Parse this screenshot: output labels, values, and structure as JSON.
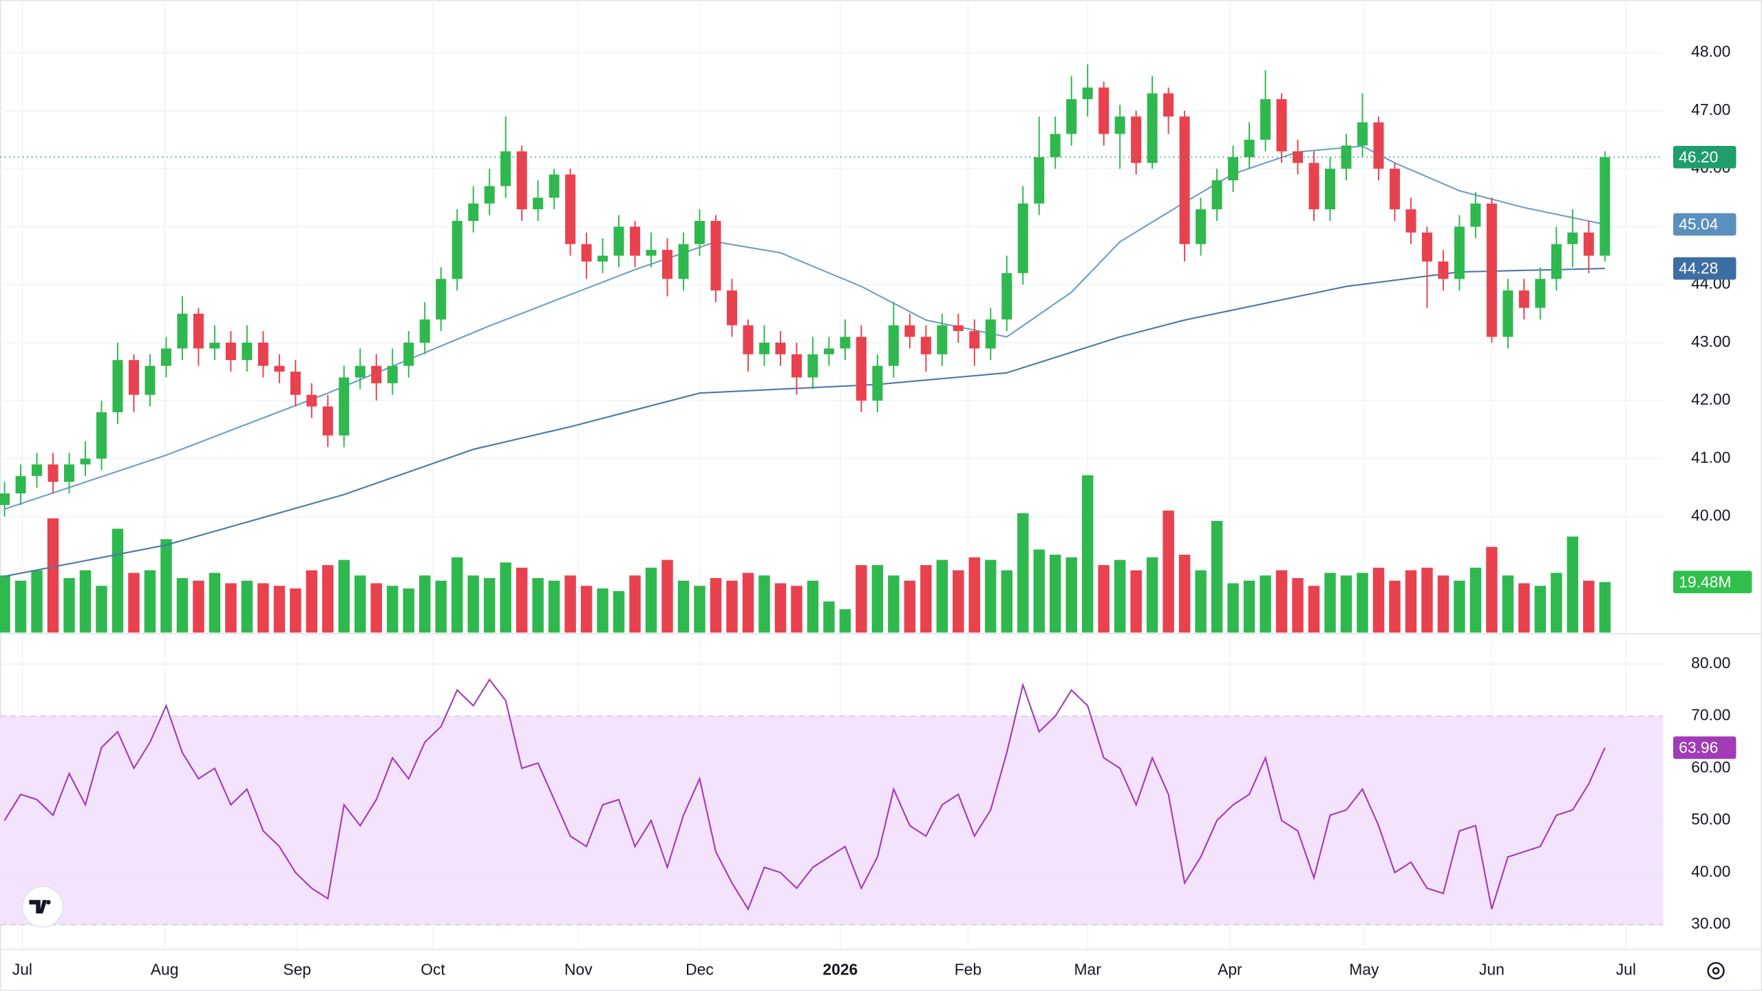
{
  "chart_data": [
    {
      "type": "candlestick",
      "xlim": [
        -0.28,
        102.6
      ],
      "ylim": [
        38.0,
        48.91
      ],
      "xticks": [
        {
          "value": 1.1,
          "label": "Jul"
        },
        {
          "value": 9.9,
          "label": "Aug"
        },
        {
          "value": 18.1,
          "label": "Sep"
        },
        {
          "value": 26.5,
          "label": "Oct"
        },
        {
          "value": 35.5,
          "label": "Nov"
        },
        {
          "value": 43.0,
          "label": "Dec"
        },
        {
          "value": 51.7,
          "label": "2026",
          "bold": true
        },
        {
          "value": 59.6,
          "label": "Feb"
        },
        {
          "value": 67.0,
          "label": "Mar"
        },
        {
          "value": 75.8,
          "label": "Apr"
        },
        {
          "value": 84.1,
          "label": "May"
        },
        {
          "value": 92.0,
          "label": "Jun"
        },
        {
          "value": 100.3,
          "label": "Jul"
        }
      ],
      "yticks": [
        {
          "value": 40,
          "label": "40.00"
        },
        {
          "value": 41,
          "label": "41.00"
        },
        {
          "value": 42,
          "label": "42.00"
        },
        {
          "value": 43,
          "label": "43.00"
        },
        {
          "value": 44,
          "label": "44.00"
        },
        {
          "value": 45,
          "label": "45.00"
        },
        {
          "value": 46,
          "label": "46.00"
        },
        {
          "value": 47,
          "label": "47.00"
        },
        {
          "value": 48,
          "label": "48.00"
        }
      ],
      "grid": true,
      "up_color": "#2fb84e",
      "down_color": "#e8424e",
      "label_color": "#1f9d6b",
      "x": [
        0,
        1,
        2,
        3,
        4,
        5,
        6,
        7,
        8,
        9,
        10,
        11,
        12,
        13,
        14,
        15,
        16,
        17,
        18,
        19,
        20,
        21,
        22,
        23,
        24,
        25,
        26,
        27,
        28,
        29,
        30,
        31,
        32,
        33,
        34,
        35,
        36,
        37,
        38,
        39,
        40,
        41,
        42,
        43,
        44,
        45,
        46,
        47,
        48,
        49,
        50,
        51,
        52,
        53,
        54,
        55,
        56,
        57,
        58,
        59,
        60,
        61,
        62,
        63,
        64,
        65,
        66,
        67,
        68,
        69,
        70,
        71,
        72,
        73,
        74,
        75,
        76,
        77,
        78,
        79,
        80,
        81,
        82,
        83,
        84,
        85,
        86,
        87,
        88,
        89,
        90,
        91,
        92,
        93,
        94,
        95,
        96,
        97,
        98,
        99
      ],
      "open": [
        40.2,
        40.4,
        40.7,
        40.9,
        40.6,
        40.9,
        41.0,
        41.8,
        42.7,
        42.1,
        42.6,
        42.9,
        43.5,
        42.9,
        43.0,
        42.7,
        43.0,
        42.6,
        42.5,
        42.1,
        41.9,
        41.4,
        42.4,
        42.6,
        42.3,
        42.6,
        43.0,
        43.4,
        44.1,
        45.1,
        45.4,
        45.7,
        46.3,
        45.3,
        45.5,
        45.9,
        44.7,
        44.4,
        44.5,
        45.0,
        44.5,
        44.6,
        44.1,
        44.7,
        45.1,
        43.9,
        43.3,
        42.8,
        43.0,
        42.8,
        42.4,
        42.8,
        42.9,
        43.1,
        42.0,
        42.6,
        43.3,
        43.1,
        42.8,
        43.3,
        43.2,
        42.9,
        43.4,
        44.2,
        45.4,
        46.2,
        46.6,
        47.2,
        47.4,
        46.6,
        46.9,
        46.1,
        47.3,
        46.9,
        44.7,
        45.3,
        45.8,
        46.2,
        46.5,
        47.2,
        46.3,
        46.1,
        45.3,
        46.0,
        46.4,
        46.8,
        46.0,
        45.3,
        44.9,
        44.4,
        44.1,
        45.0,
        45.4,
        43.1,
        43.9,
        43.6,
        44.1,
        44.7,
        44.9,
        44.5
      ],
      "high": [
        40.6,
        40.9,
        41.1,
        41.1,
        41.1,
        41.3,
        42.0,
        43.0,
        42.8,
        42.8,
        43.1,
        43.8,
        43.6,
        43.3,
        43.2,
        43.3,
        43.2,
        42.8,
        42.7,
        42.3,
        42.1,
        42.6,
        42.9,
        42.8,
        42.9,
        43.2,
        43.7,
        44.3,
        45.3,
        45.7,
        46.0,
        46.9,
        46.4,
        45.8,
        46.0,
        46.0,
        44.9,
        44.8,
        45.2,
        45.1,
        44.9,
        44.8,
        44.9,
        45.3,
        45.2,
        44.1,
        43.4,
        43.3,
        43.2,
        43.0,
        43.1,
        43.1,
        43.4,
        43.3,
        42.8,
        43.7,
        43.5,
        43.3,
        43.5,
        43.5,
        43.4,
        43.6,
        44.5,
        45.7,
        46.9,
        46.9,
        47.6,
        47.8,
        47.5,
        47.1,
        47.0,
        47.6,
        47.4,
        47.0,
        45.5,
        46.0,
        46.4,
        46.8,
        47.7,
        47.3,
        46.5,
        46.3,
        46.2,
        46.6,
        47.3,
        46.9,
        46.1,
        45.5,
        45.0,
        44.6,
        45.2,
        45.6,
        45.5,
        44.1,
        44.1,
        44.3,
        45.0,
        45.3,
        45.1,
        46.3
      ],
      "low": [
        40.0,
        40.2,
        40.5,
        40.4,
        40.4,
        40.7,
        40.8,
        41.6,
        41.8,
        41.9,
        42.4,
        42.7,
        42.6,
        42.7,
        42.5,
        42.5,
        42.4,
        42.3,
        41.9,
        41.7,
        41.2,
        41.2,
        42.2,
        42.0,
        42.1,
        42.4,
        42.8,
        43.2,
        43.9,
        44.9,
        45.2,
        45.5,
        45.1,
        45.1,
        45.3,
        44.5,
        44.1,
        44.2,
        44.3,
        44.3,
        44.3,
        43.8,
        43.9,
        44.5,
        43.7,
        43.1,
        42.5,
        42.6,
        42.6,
        42.1,
        42.2,
        42.6,
        42.7,
        41.8,
        41.8,
        42.4,
        42.9,
        42.5,
        42.6,
        43.0,
        42.6,
        42.7,
        43.2,
        44.0,
        45.2,
        46.0,
        46.4,
        46.9,
        46.4,
        46.0,
        45.9,
        46.0,
        46.6,
        44.4,
        44.5,
        45.1,
        45.6,
        46.0,
        46.3,
        46.1,
        45.9,
        45.1,
        45.1,
        45.8,
        46.2,
        45.8,
        45.1,
        44.7,
        43.6,
        43.9,
        43.9,
        44.8,
        43.0,
        42.9,
        43.4,
        43.4,
        43.9,
        44.3,
        44.2,
        44.4
      ],
      "close": [
        40.4,
        40.7,
        40.9,
        40.6,
        40.9,
        41.0,
        41.8,
        42.7,
        42.1,
        42.6,
        42.9,
        43.5,
        42.9,
        43.0,
        42.7,
        43.0,
        42.6,
        42.5,
        42.1,
        41.9,
        41.4,
        42.4,
        42.6,
        42.3,
        42.6,
        43.0,
        43.4,
        44.1,
        45.1,
        45.4,
        45.7,
        46.3,
        45.3,
        45.5,
        45.9,
        44.7,
        44.4,
        44.5,
        45.0,
        44.5,
        44.6,
        44.1,
        44.7,
        45.1,
        43.9,
        43.3,
        42.8,
        43.0,
        42.8,
        42.4,
        42.8,
        42.9,
        43.1,
        42.0,
        42.6,
        43.3,
        43.1,
        42.8,
        43.3,
        43.2,
        42.9,
        43.4,
        44.2,
        45.4,
        46.2,
        46.6,
        47.2,
        47.4,
        46.6,
        46.9,
        46.1,
        47.3,
        46.9,
        44.7,
        45.3,
        45.8,
        46.2,
        46.5,
        47.2,
        46.3,
        46.1,
        45.3,
        46.0,
        46.4,
        46.8,
        46.0,
        45.3,
        44.9,
        44.4,
        44.1,
        45.0,
        45.4,
        43.1,
        43.9,
        43.6,
        44.1,
        44.7,
        44.9,
        44.5,
        46.2
      ],
      "value_label": "46.20",
      "series": [
        {
          "color": "#6d9fc8",
          "label_color": "#5b8fbd",
          "x": [
            0,
            10,
            20,
            30,
            39,
            44,
            48,
            53,
            57,
            62,
            66,
            69,
            73,
            76,
            80,
            84,
            86,
            90,
            94,
            99
          ],
          "values": [
            40.13,
            41.06,
            42.13,
            43.29,
            44.26,
            44.74,
            44.55,
            43.97,
            43.39,
            43.1,
            43.87,
            44.74,
            45.42,
            45.91,
            46.29,
            46.39,
            46.1,
            45.62,
            45.33,
            45.04
          ],
          "value_label": "45.04"
        },
        {
          "color": "#4a7aa8",
          "label_color": "#3d6ea3",
          "x": [
            0,
            10,
            21,
            29,
            35,
            43,
            54,
            62,
            69,
            73,
            83,
            90,
            99
          ],
          "values": [
            38.97,
            39.51,
            40.38,
            41.16,
            41.55,
            42.13,
            42.28,
            42.48,
            43.1,
            43.39,
            43.97,
            44.22,
            44.28
          ],
          "value_label": "44.28"
        }
      ]
    },
    {
      "type": "bar",
      "ylim": [
        0,
        243.7
      ],
      "label_color": "#2fbf4a",
      "values": [
        22,
        20,
        24,
        44,
        21,
        24,
        18,
        40,
        23,
        24,
        36,
        21,
        20,
        23,
        19,
        20,
        19,
        18,
        17,
        24,
        26,
        28,
        22,
        19,
        18,
        17,
        22,
        20,
        29,
        22,
        21,
        27,
        25,
        21,
        20,
        22,
        18,
        17,
        16,
        22,
        25,
        28,
        20,
        18,
        21,
        20,
        23,
        22,
        19,
        18,
        20,
        12,
        9,
        26,
        26,
        22,
        20,
        26,
        28,
        24,
        29,
        28,
        24,
        46,
        32,
        30,
        29,
        60.6,
        26,
        28,
        24,
        29,
        47,
        30,
        24,
        43,
        19,
        20,
        22,
        24,
        21,
        18,
        23,
        22,
        23,
        25,
        20,
        24,
        25,
        22,
        20,
        25,
        33,
        22,
        19,
        18,
        23,
        37,
        20,
        19.48
      ],
      "value_label": "19.48M"
    },
    {
      "type": "line",
      "color": "#a23bb7",
      "band_color": "#f3e3fc",
      "ylim": [
        25.26,
        85.6
      ],
      "yticks": [
        {
          "value": 30,
          "label": "30.00"
        },
        {
          "value": 40,
          "label": "40.00"
        },
        {
          "value": 50,
          "label": "50.00"
        },
        {
          "value": 60,
          "label": "60.00"
        },
        {
          "value": 70,
          "label": "70.00"
        },
        {
          "value": 80,
          "label": "80.00"
        }
      ],
      "band": [
        30,
        70
      ],
      "values": [
        50,
        55,
        54,
        51,
        59,
        53,
        64,
        67,
        60,
        65,
        72,
        63,
        58,
        60,
        53,
        56,
        48,
        45,
        40,
        37,
        35,
        53,
        49,
        54,
        62,
        58,
        65,
        68,
        75,
        72,
        77,
        73,
        60,
        61,
        54,
        47,
        45,
        53,
        54,
        45,
        50,
        41,
        51,
        58,
        44,
        38,
        33,
        41,
        40,
        37,
        41,
        43,
        45,
        37,
        43,
        56,
        49,
        47,
        53,
        55,
        47,
        52,
        63,
        76,
        67,
        70,
        75,
        72,
        62,
        60,
        53,
        62,
        55,
        38,
        43,
        50,
        53,
        55,
        62,
        50,
        48,
        39,
        51,
        52,
        56,
        49,
        40,
        42,
        37,
        36,
        48,
        49,
        33,
        43,
        44,
        45,
        51,
        52,
        57,
        63.96
      ],
      "value_label": "63.96"
    }
  ]
}
